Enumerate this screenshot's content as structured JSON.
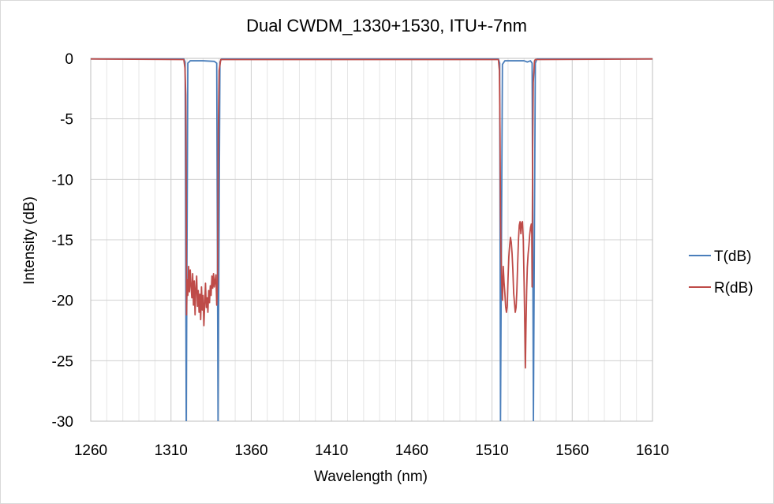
{
  "chart_data": {
    "type": "line",
    "title": "Dual CWDM_1330+1530, ITU+-7nm",
    "xlabel": "Wavelength (nm)",
    "ylabel": "Intensity (dB)",
    "xlim": [
      1260,
      1610
    ],
    "ylim": [
      -30,
      0
    ],
    "xticks": [
      1260,
      1310,
      1360,
      1410,
      1460,
      1510,
      1560,
      1610
    ],
    "yticks": [
      0,
      -5,
      -10,
      -15,
      -20,
      -25,
      -30
    ],
    "grid": true,
    "legend_position": "right",
    "series": [
      {
        "name": "T(dB)",
        "color": "#4a7ebb",
        "points": [
          [
            1260,
            -0.05
          ],
          [
            1318,
            -0.05
          ],
          [
            1318.8,
            -0.3
          ],
          [
            1319.5,
            -30
          ],
          [
            1320.5,
            -0.4
          ],
          [
            1322,
            -0.2
          ],
          [
            1330,
            -0.2
          ],
          [
            1337,
            -0.25
          ],
          [
            1338.5,
            -0.4
          ],
          [
            1339.3,
            -30
          ],
          [
            1340.5,
            -0.3
          ],
          [
            1341.5,
            -0.05
          ],
          [
            1514,
            -0.05
          ],
          [
            1514.8,
            -0.4
          ],
          [
            1515.3,
            -30
          ],
          [
            1516.5,
            -0.5
          ],
          [
            1518,
            -0.2
          ],
          [
            1530,
            -0.2
          ],
          [
            1532,
            -0.3
          ],
          [
            1534,
            -0.2
          ],
          [
            1535,
            -0.4
          ],
          [
            1535.8,
            -30
          ],
          [
            1537,
            -0.4
          ],
          [
            1538,
            -0.05
          ],
          [
            1610,
            -0.05
          ]
        ]
      },
      {
        "name": "R(dB)",
        "color": "#be4b48",
        "points": [
          [
            1260,
            -0.05
          ],
          [
            1318,
            -0.1
          ],
          [
            1318.7,
            -0.8
          ],
          [
            1319.2,
            -3
          ],
          [
            1319.5,
            -12
          ],
          [
            1319.7,
            -21.2
          ],
          [
            1320,
            -18.3
          ],
          [
            1320.5,
            -19.6
          ],
          [
            1321,
            -17.2
          ],
          [
            1321.5,
            -19.3
          ],
          [
            1322,
            -17.5
          ],
          [
            1322.5,
            -18.8
          ],
          [
            1323,
            -19.8
          ],
          [
            1323.5,
            -17.8
          ],
          [
            1324,
            -20.4
          ],
          [
            1324.5,
            -18.4
          ],
          [
            1325,
            -21.2
          ],
          [
            1325.5,
            -19.0
          ],
          [
            1326,
            -18.0
          ],
          [
            1326.5,
            -20.5
          ],
          [
            1327,
            -19.2
          ],
          [
            1327.5,
            -21.0
          ],
          [
            1328,
            -19.5
          ],
          [
            1328.5,
            -21.6
          ],
          [
            1329,
            -18.9
          ],
          [
            1329.5,
            -20.8
          ],
          [
            1330,
            -19.6
          ],
          [
            1330.5,
            -22.1
          ],
          [
            1331,
            -20.3
          ],
          [
            1331.5,
            -18.6
          ],
          [
            1332,
            -20.6
          ],
          [
            1332.5,
            -19.8
          ],
          [
            1333,
            -21.0
          ],
          [
            1333.5,
            -19.2
          ],
          [
            1334,
            -20.2
          ],
          [
            1334.5,
            -18.8
          ],
          [
            1335,
            -19.6
          ],
          [
            1335.5,
            -18.0
          ],
          [
            1336,
            -19.0
          ],
          [
            1336.5,
            -17.8
          ],
          [
            1337,
            -18.9
          ],
          [
            1337.5,
            -18.4
          ],
          [
            1338,
            -17.9
          ],
          [
            1338.5,
            -20.4
          ],
          [
            1339,
            -18.4
          ],
          [
            1339.5,
            -6
          ],
          [
            1340,
            -1.0
          ],
          [
            1341,
            -0.1
          ],
          [
            1514,
            -0.1
          ],
          [
            1514.6,
            -1.0
          ],
          [
            1515.0,
            -6
          ],
          [
            1515.3,
            -13.0
          ],
          [
            1515.6,
            -15.7
          ],
          [
            1516,
            -18.3
          ],
          [
            1516.5,
            -20.0
          ],
          [
            1517,
            -17.2
          ],
          [
            1517.5,
            -18.5
          ],
          [
            1518,
            -19.4
          ],
          [
            1518.5,
            -20.5
          ],
          [
            1519,
            -21.0
          ],
          [
            1519.5,
            -20.5
          ],
          [
            1520,
            -18.2
          ],
          [
            1520.5,
            -16.4
          ],
          [
            1521,
            -15.5
          ],
          [
            1521.5,
            -14.8
          ],
          [
            1522,
            -15.2
          ],
          [
            1522.5,
            -16.1
          ],
          [
            1523,
            -17.5
          ],
          [
            1523.5,
            -19.4
          ],
          [
            1524,
            -20.2
          ],
          [
            1524.5,
            -21.0
          ],
          [
            1525,
            -20.6
          ],
          [
            1525.5,
            -19.2
          ],
          [
            1526,
            -17.0
          ],
          [
            1526.5,
            -15.0
          ],
          [
            1527,
            -13.8
          ],
          [
            1527.5,
            -13.5
          ],
          [
            1528,
            -14.5
          ],
          [
            1528.5,
            -13.6
          ],
          [
            1529,
            -13.5
          ],
          [
            1529.5,
            -15.0
          ],
          [
            1530,
            -18.5
          ],
          [
            1530.5,
            -22.5
          ],
          [
            1530.8,
            -25.6
          ],
          [
            1531.2,
            -22.0
          ],
          [
            1531.6,
            -19.2
          ],
          [
            1532,
            -17.3
          ],
          [
            1532.5,
            -16.2
          ],
          [
            1533,
            -15.5
          ],
          [
            1533.5,
            -14.6
          ],
          [
            1534,
            -14.0
          ],
          [
            1534.5,
            -13.7
          ],
          [
            1534.8,
            -14.5
          ],
          [
            1535,
            -18.9
          ],
          [
            1535.3,
            -8
          ],
          [
            1535.7,
            -2.0
          ],
          [
            1536.5,
            -0.2
          ],
          [
            1537,
            -0.1
          ],
          [
            1610,
            -0.05
          ]
        ]
      }
    ]
  }
}
